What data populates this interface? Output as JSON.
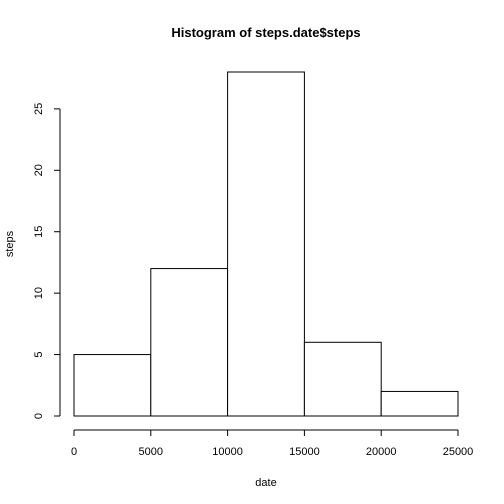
{
  "chart_data": {
    "type": "bar",
    "title": "Histogram of steps.date$steps",
    "xlabel": "date",
    "ylabel": "steps",
    "bins": [
      {
        "from": 0,
        "to": 5000,
        "count": 5
      },
      {
        "from": 5000,
        "to": 10000,
        "count": 12
      },
      {
        "from": 10000,
        "to": 15000,
        "count": 28
      },
      {
        "from": 15000,
        "to": 20000,
        "count": 6
      },
      {
        "from": 20000,
        "to": 25000,
        "count": 2
      }
    ],
    "x_ticks": [
      "0",
      "5000",
      "10000",
      "15000",
      "20000",
      "25000"
    ],
    "y_ticks": [
      "0",
      "5",
      "10",
      "15",
      "20",
      "25"
    ],
    "xlim": [
      0,
      25000
    ],
    "ylim": [
      0,
      28
    ],
    "grid": false,
    "colors": {
      "bar_fill": "#ffffff",
      "bar_stroke": "#000000"
    }
  }
}
